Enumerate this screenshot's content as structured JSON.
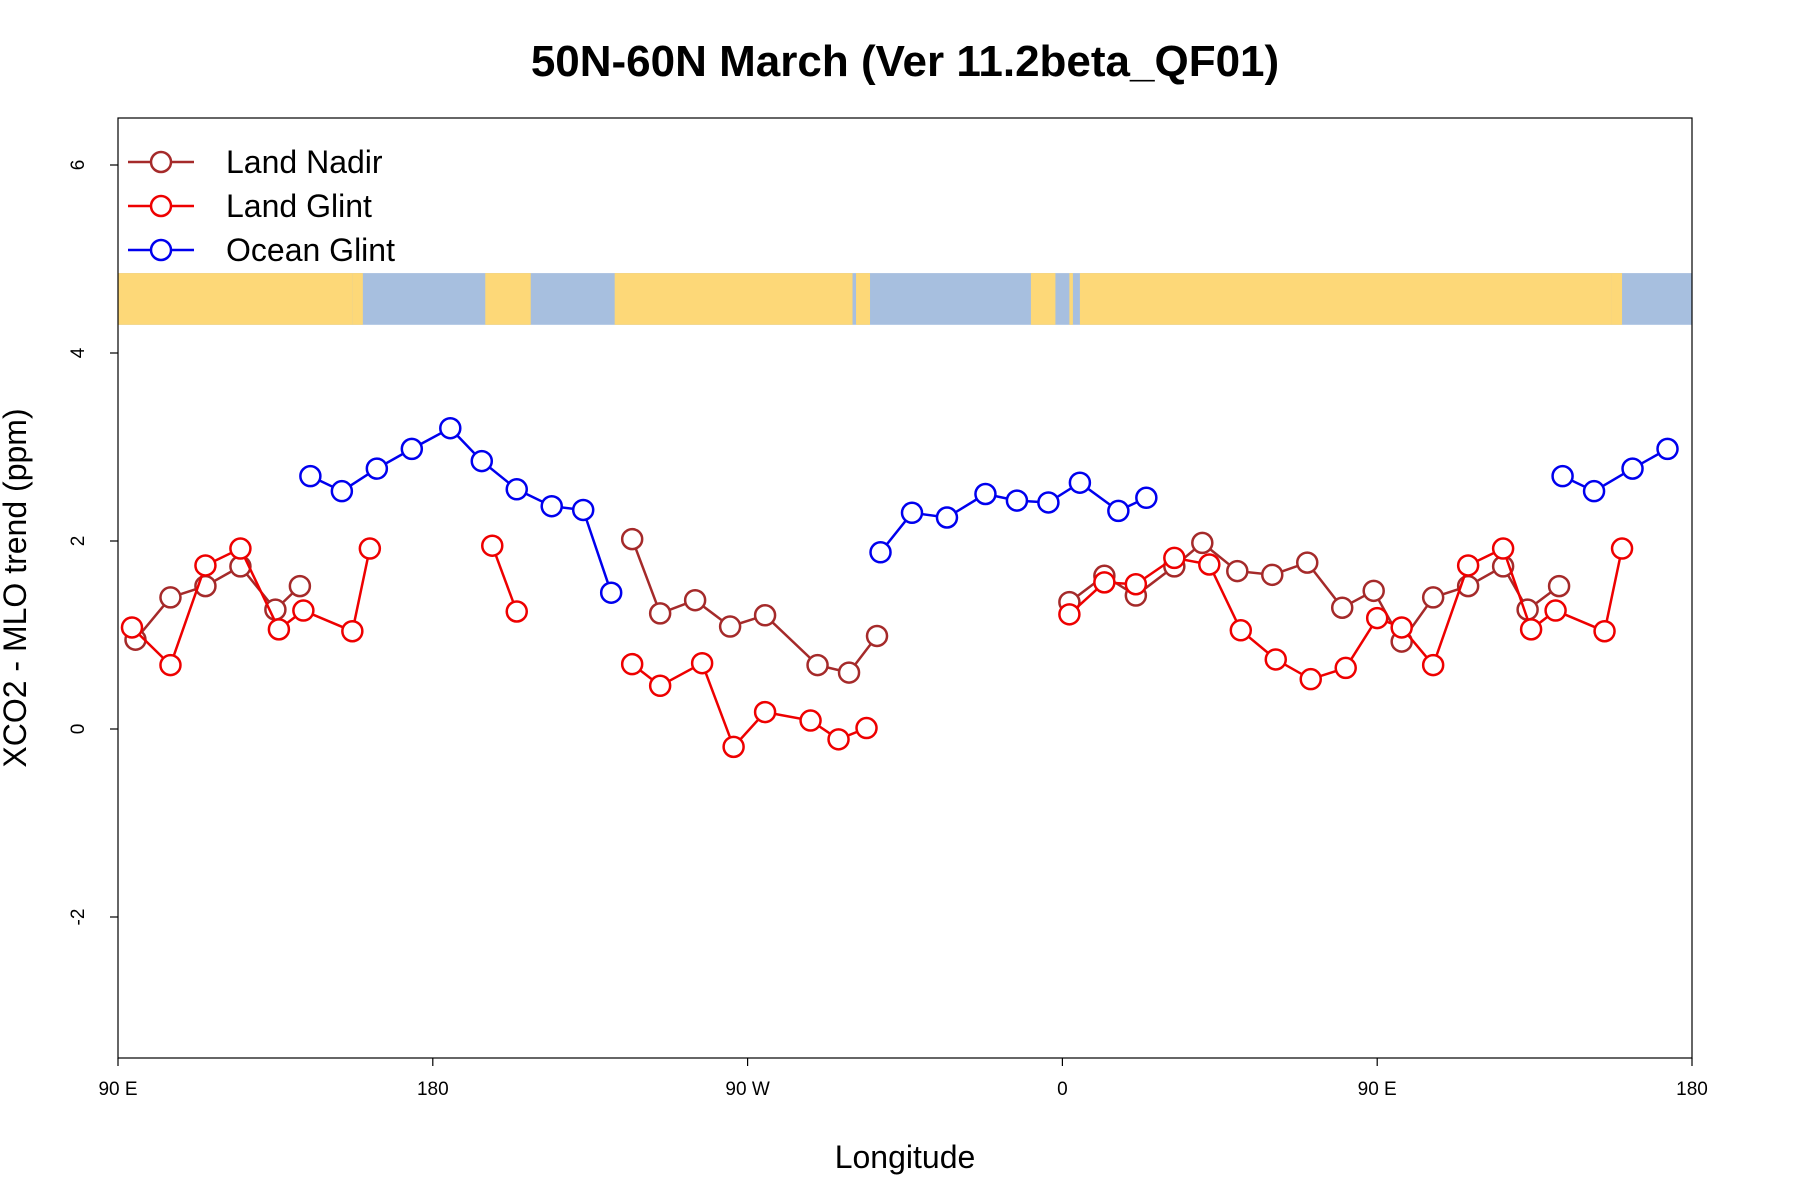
{
  "chart_data": {
    "type": "line",
    "title": "50N-60N March (Ver 11.2beta_QF01)",
    "xlabel": "Longitude",
    "ylabel": "XCO2 - MLO trend (ppm)",
    "xlim": [
      90,
      540
    ],
    "ylim": [
      -3.5,
      6.5
    ],
    "x_ticks": [
      {
        "value": 90,
        "label": "90 E"
      },
      {
        "value": 180,
        "label": "180"
      },
      {
        "value": 270,
        "label": "90 W"
      },
      {
        "value": 360,
        "label": "0"
      },
      {
        "value": 450,
        "label": "90 E"
      },
      {
        "value": 540,
        "label": "180"
      }
    ],
    "y_ticks": [
      {
        "value": -2,
        "label": "-2"
      },
      {
        "value": 0,
        "label": "0"
      },
      {
        "value": 2,
        "label": "2"
      },
      {
        "value": 4,
        "label": "4"
      },
      {
        "value": 6,
        "label": "6"
      }
    ],
    "legend": {
      "position": "top-left"
    },
    "background_map": {
      "description": "world map strip 50N-60N",
      "y_range": [
        4.3,
        4.85
      ],
      "land_color": "#fdd878",
      "ocean_color": "#a7bfdf"
    },
    "series": [
      {
        "name": "Land Nadir",
        "color": "#a52a2a",
        "segments": [
          [
            [
              95,
              0.95
            ],
            [
              105,
              1.4
            ],
            [
              115,
              1.52
            ],
            [
              125,
              1.73
            ],
            [
              135,
              1.27
            ],
            [
              142,
              1.52
            ]
          ],
          [
            [
              237,
              2.02
            ],
            [
              245,
              1.23
            ],
            [
              255,
              1.37
            ],
            [
              265,
              1.09
            ],
            [
              275,
              1.21
            ],
            [
              290,
              0.68
            ],
            [
              299,
              0.6
            ],
            [
              307,
              0.99
            ]
          ],
          [
            [
              362,
              1.35
            ],
            [
              372,
              1.63
            ],
            [
              381,
              1.42
            ],
            [
              392,
              1.73
            ],
            [
              400,
              1.98
            ],
            [
              410,
              1.68
            ],
            [
              420,
              1.64
            ],
            [
              430,
              1.77
            ],
            [
              440,
              1.29
            ],
            [
              449,
              1.47
            ],
            [
              457,
              0.93
            ],
            [
              466,
              1.4
            ],
            [
              476,
              1.52
            ],
            [
              486,
              1.73
            ],
            [
              493,
              1.27
            ],
            [
              502,
              1.52
            ]
          ]
        ]
      },
      {
        "name": "Land Glint",
        "color": "#ee0000",
        "segments": [
          [
            [
              94,
              1.08
            ],
            [
              105,
              0.68
            ],
            [
              115,
              1.74
            ],
            [
              125,
              1.92
            ],
            [
              136,
              1.06
            ],
            [
              143,
              1.26
            ],
            [
              157,
              1.04
            ],
            [
              162,
              1.92
            ]
          ],
          [
            [
              197,
              1.95
            ],
            [
              204,
              1.25
            ]
          ],
          [
            [
              237,
              0.69
            ],
            [
              245,
              0.46
            ],
            [
              257,
              0.7
            ],
            [
              266,
              -0.19
            ],
            [
              275,
              0.18
            ],
            [
              288,
              0.09
            ],
            [
              296,
              -0.11
            ],
            [
              304,
              0.01
            ]
          ],
          [
            [
              362,
              1.22
            ],
            [
              372,
              1.56
            ],
            [
              381,
              1.54
            ],
            [
              392,
              1.82
            ],
            [
              402,
              1.75
            ],
            [
              411,
              1.05
            ],
            [
              421,
              0.74
            ],
            [
              431,
              0.53
            ],
            [
              441,
              0.65
            ],
            [
              450,
              1.18
            ],
            [
              457,
              1.08
            ],
            [
              466,
              0.68
            ],
            [
              476,
              1.74
            ],
            [
              486,
              1.92
            ],
            [
              494,
              1.06
            ],
            [
              501,
              1.26
            ],
            [
              515,
              1.04
            ],
            [
              520,
              1.92
            ]
          ]
        ]
      },
      {
        "name": "Ocean Glint",
        "color": "#0000ee",
        "segments": [
          [
            [
              145,
              2.69
            ],
            [
              154,
              2.53
            ],
            [
              164,
              2.77
            ],
            [
              174,
              2.98
            ],
            [
              185,
              3.2
            ],
            [
              194,
              2.85
            ],
            [
              204,
              2.55
            ],
            [
              214,
              2.37
            ],
            [
              223,
              2.33
            ],
            [
              231,
              1.45
            ]
          ],
          [
            [
              308,
              1.88
            ],
            [
              317,
              2.3
            ],
            [
              327,
              2.25
            ],
            [
              338,
              2.5
            ],
            [
              347,
              2.43
            ],
            [
              356,
              2.41
            ],
            [
              365,
              2.62
            ],
            [
              376,
              2.32
            ],
            [
              384,
              2.46
            ]
          ],
          [
            [
              503,
              2.69
            ],
            [
              512,
              2.53
            ],
            [
              523,
              2.77
            ],
            [
              533,
              2.98
            ]
          ]
        ]
      }
    ]
  }
}
